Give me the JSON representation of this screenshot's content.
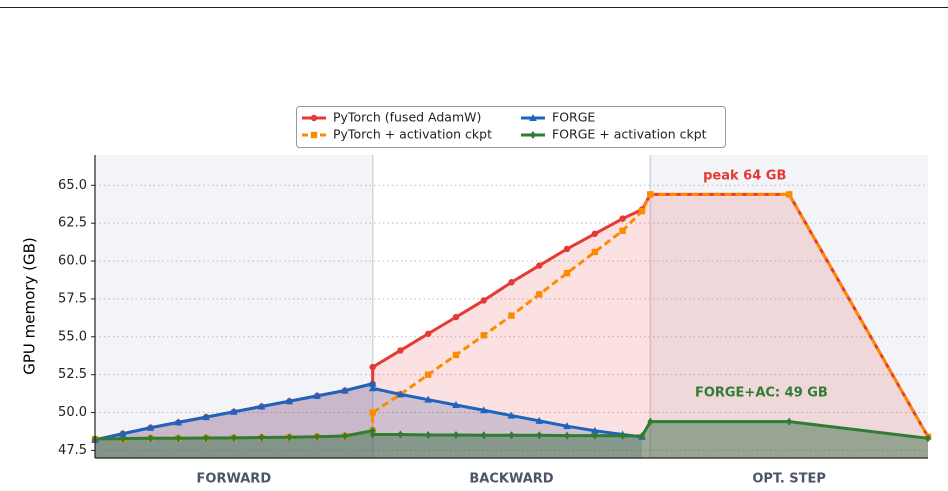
{
  "chart_data": {
    "type": "line",
    "ylabel": "GPU memory (GB)",
    "xlim": [
      0,
      3
    ],
    "ylim": [
      47,
      67
    ],
    "yticks": [
      {
        "value": 47.5,
        "label": "47.5"
      },
      {
        "value": 50,
        "label": "50.0"
      },
      {
        "value": 52.5,
        "label": "52.5"
      },
      {
        "value": 55,
        "label": "55.0"
      },
      {
        "value": 57.5,
        "label": "57.5"
      },
      {
        "value": 60,
        "label": "60.0"
      },
      {
        "value": 62.5,
        "label": "62.5"
      },
      {
        "value": 65,
        "label": "65.0"
      }
    ],
    "grid": true,
    "legend": "upper center",
    "regions": [
      {
        "label": "FORWARD",
        "xlim": [
          0,
          1
        ],
        "shaded": true
      },
      {
        "label": "BACKWARD",
        "xlim": [
          1,
          2
        ],
        "shaded": false
      },
      {
        "label": "OPT. STEP",
        "xlim": [
          2,
          3
        ],
        "shaded": true
      }
    ],
    "series": [
      {
        "name": "PyTorch (fused AdamW)",
        "color": "#e53935",
        "marker": "circle",
        "dashed": false,
        "fill": "rgba(229,57,53,0.15)",
        "x": [
          0,
          0.1,
          0.2,
          0.3,
          0.4,
          0.5,
          0.6,
          0.7,
          0.8,
          0.9,
          1,
          1,
          1.1,
          1.2,
          1.3,
          1.4,
          1.5,
          1.6,
          1.7,
          1.8,
          1.9,
          1.97,
          2,
          2.5,
          3
        ],
        "values": [
          48.2,
          48.6,
          49.0,
          49.35,
          49.7,
          50.05,
          50.4,
          50.75,
          51.1,
          51.45,
          51.9,
          53.0,
          54.1,
          55.2,
          56.3,
          57.4,
          58.6,
          59.7,
          60.8,
          61.8,
          62.8,
          63.4,
          64.4,
          64.4,
          48.4
        ]
      },
      {
        "name": "PyTorch + activation ckpt",
        "color": "#fb8c00",
        "marker": "square",
        "dashed": true,
        "fill": null,
        "x": [
          0,
          0.1,
          0.2,
          0.3,
          0.4,
          0.5,
          0.6,
          0.7,
          0.8,
          0.9,
          1,
          1,
          1.1,
          1.2,
          1.3,
          1.4,
          1.5,
          1.6,
          1.7,
          1.8,
          1.9,
          1.97,
          2,
          2.5,
          3
        ],
        "values": [
          48.25,
          48.28,
          48.3,
          48.3,
          48.32,
          48.33,
          48.35,
          48.37,
          48.4,
          48.45,
          48.8,
          50.0,
          51.2,
          52.5,
          53.8,
          55.1,
          56.4,
          57.8,
          59.2,
          60.6,
          62.0,
          63.3,
          64.4,
          64.4,
          48.4
        ]
      },
      {
        "name": "FORGE",
        "color": "#1e63c0",
        "marker": "triangle",
        "dashed": false,
        "fill": "rgba(40,60,140,0.2)",
        "x": [
          0,
          0.1,
          0.2,
          0.3,
          0.4,
          0.5,
          0.6,
          0.7,
          0.8,
          0.9,
          1,
          1,
          1.1,
          1.2,
          1.3,
          1.4,
          1.5,
          1.6,
          1.7,
          1.8,
          1.9,
          1.97
        ],
        "values": [
          48.2,
          48.6,
          49.0,
          49.35,
          49.7,
          50.05,
          50.4,
          50.75,
          51.1,
          51.45,
          51.9,
          51.6,
          51.2,
          50.85,
          50.5,
          50.15,
          49.8,
          49.45,
          49.1,
          48.8,
          48.55,
          48.4
        ]
      },
      {
        "name": "FORGE + activation ckpt",
        "color": "#2e7d32",
        "marker": "diamond",
        "dashed": false,
        "fill": "rgba(46,105,60,0.45)",
        "x": [
          0,
          0.1,
          0.2,
          0.3,
          0.4,
          0.5,
          0.6,
          0.7,
          0.8,
          0.9,
          1,
          1,
          1.1,
          1.2,
          1.3,
          1.4,
          1.5,
          1.6,
          1.7,
          1.8,
          1.9,
          1.97,
          2,
          2.5,
          3
        ],
        "values": [
          48.25,
          48.28,
          48.3,
          48.3,
          48.32,
          48.33,
          48.35,
          48.37,
          48.4,
          48.45,
          48.8,
          48.55,
          48.55,
          48.52,
          48.52,
          48.5,
          48.5,
          48.5,
          48.48,
          48.48,
          48.47,
          48.45,
          49.4,
          49.4,
          48.3
        ]
      }
    ],
    "annotations": [
      {
        "text": "peak 64 GB",
        "x": 2.34,
        "y": 65.6,
        "color": "#e53935"
      },
      {
        "text": "FORGE+AC: 49 GB",
        "x": 2.4,
        "y": 51.3,
        "color": "#2e7d32"
      }
    ]
  }
}
